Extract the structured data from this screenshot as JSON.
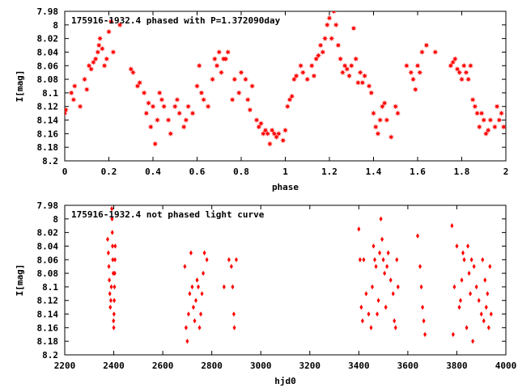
{
  "chart_data": [
    {
      "type": "scatter",
      "title": "175916-1932.4 phased with P=1.372090day",
      "xlabel": "phase",
      "ylabel": "I[mag]",
      "xlim": [
        0,
        2
      ],
      "ylim": [
        8.2,
        7.98
      ],
      "y_inverted": true,
      "grid": false,
      "marker": "star",
      "color": "#ff0000",
      "xticks": [
        "0",
        "0.2",
        "0.4",
        "0.6",
        "0.8",
        "1",
        "1.2",
        "1.4",
        "1.6",
        "1.8",
        "2"
      ],
      "xtick_values": [
        0,
        0.2,
        0.4,
        0.6,
        0.8,
        1.0,
        1.2,
        1.4,
        1.6,
        1.8,
        2.0
      ],
      "yticks": [
        "7.98",
        "8",
        "8.02",
        "8.04",
        "8.06",
        "8.08",
        "8.1",
        "8.12",
        "8.14",
        "8.16",
        "8.18",
        "8.2"
      ],
      "ytick_values": [
        7.98,
        8.0,
        8.02,
        8.04,
        8.06,
        8.08,
        8.1,
        8.12,
        8.14,
        8.16,
        8.18,
        8.2
      ],
      "points": [
        [
          0.0,
          8.13
        ],
        [
          0.005,
          8.125
        ],
        [
          0.03,
          8.1
        ],
        [
          0.04,
          8.11
        ],
        [
          0.045,
          8.09
        ],
        [
          0.07,
          8.12
        ],
        [
          0.09,
          8.08
        ],
        [
          0.1,
          8.095
        ],
        [
          0.11,
          8.06
        ],
        [
          0.12,
          8.065
        ],
        [
          0.13,
          8.055
        ],
        [
          0.14,
          8.05
        ],
        [
          0.15,
          8.04
        ],
        [
          0.155,
          8.03
        ],
        [
          0.16,
          8.02
        ],
        [
          0.17,
          8.035
        ],
        [
          0.18,
          8.06
        ],
        [
          0.19,
          8.05
        ],
        [
          0.2,
          8.01
        ],
        [
          0.21,
          7.995
        ],
        [
          0.22,
          8.04
        ],
        [
          0.25,
          8.0
        ],
        [
          0.3,
          8.065
        ],
        [
          0.31,
          8.07
        ],
        [
          0.33,
          8.09
        ],
        [
          0.34,
          8.085
        ],
        [
          0.36,
          8.1
        ],
        [
          0.37,
          8.13
        ],
        [
          0.38,
          8.115
        ],
        [
          0.39,
          8.15
        ],
        [
          0.4,
          8.12
        ],
        [
          0.41,
          8.175
        ],
        [
          0.42,
          8.14
        ],
        [
          0.43,
          8.1
        ],
        [
          0.44,
          8.11
        ],
        [
          0.45,
          8.12
        ],
        [
          0.47,
          8.14
        ],
        [
          0.48,
          8.16
        ],
        [
          0.5,
          8.12
        ],
        [
          0.51,
          8.11
        ],
        [
          0.52,
          8.13
        ],
        [
          0.54,
          8.15
        ],
        [
          0.55,
          8.14
        ],
        [
          0.56,
          8.12
        ],
        [
          0.58,
          8.13
        ],
        [
          0.6,
          8.09
        ],
        [
          0.61,
          8.06
        ],
        [
          0.62,
          8.1
        ],
        [
          0.63,
          8.11
        ],
        [
          0.65,
          8.12
        ],
        [
          0.67,
          8.08
        ],
        [
          0.68,
          8.05
        ],
        [
          0.69,
          8.06
        ],
        [
          0.7,
          8.04
        ],
        [
          0.71,
          8.07
        ],
        [
          0.72,
          8.05
        ],
        [
          0.73,
          8.05
        ],
        [
          0.74,
          8.04
        ],
        [
          0.76,
          8.11
        ],
        [
          0.77,
          8.08
        ],
        [
          0.79,
          8.1
        ],
        [
          0.8,
          8.07
        ],
        [
          0.82,
          8.08
        ],
        [
          0.83,
          8.11
        ],
        [
          0.84,
          8.125
        ],
        [
          0.85,
          8.09
        ],
        [
          0.87,
          8.14
        ],
        [
          0.88,
          8.15
        ],
        [
          0.89,
          8.145
        ],
        [
          0.9,
          8.16
        ],
        [
          0.91,
          8.155
        ],
        [
          0.92,
          8.16
        ],
        [
          0.93,
          8.175
        ],
        [
          0.94,
          8.155
        ],
        [
          0.95,
          8.16
        ],
        [
          0.96,
          8.165
        ],
        [
          0.97,
          8.16
        ],
        [
          0.99,
          8.17
        ],
        [
          1.0,
          8.155
        ],
        [
          1.01,
          8.12
        ],
        [
          1.02,
          8.11
        ],
        [
          1.03,
          8.105
        ],
        [
          1.04,
          8.08
        ],
        [
          1.05,
          8.075
        ],
        [
          1.07,
          8.06
        ],
        [
          1.08,
          8.07
        ],
        [
          1.1,
          8.08
        ],
        [
          1.12,
          8.06
        ],
        [
          1.13,
          8.075
        ],
        [
          1.14,
          8.05
        ],
        [
          1.15,
          8.045
        ],
        [
          1.16,
          8.03
        ],
        [
          1.17,
          8.04
        ],
        [
          1.18,
          8.02
        ],
        [
          1.19,
          8.0
        ],
        [
          1.2,
          7.99
        ],
        [
          1.21,
          8.02
        ],
        [
          1.22,
          7.98
        ],
        [
          1.23,
          8.0
        ],
        [
          1.24,
          8.03
        ],
        [
          1.25,
          8.05
        ],
        [
          1.26,
          8.07
        ],
        [
          1.27,
          8.06
        ],
        [
          1.28,
          8.065
        ],
        [
          1.29,
          8.075
        ],
        [
          1.3,
          8.06
        ],
        [
          1.31,
          8.005
        ],
        [
          1.32,
          8.05
        ],
        [
          1.33,
          8.085
        ],
        [
          1.34,
          8.07
        ],
        [
          1.35,
          8.085
        ],
        [
          1.36,
          8.075
        ],
        [
          1.38,
          8.09
        ],
        [
          1.39,
          8.1
        ],
        [
          1.4,
          8.13
        ],
        [
          1.41,
          8.15
        ],
        [
          1.42,
          8.16
        ],
        [
          1.43,
          8.14
        ],
        [
          1.44,
          8.12
        ],
        [
          1.45,
          8.115
        ],
        [
          1.46,
          8.14
        ],
        [
          1.48,
          8.165
        ],
        [
          1.5,
          8.12
        ],
        [
          1.51,
          8.13
        ],
        [
          1.55,
          8.06
        ],
        [
          1.57,
          8.07
        ],
        [
          1.58,
          8.08
        ],
        [
          1.59,
          8.095
        ],
        [
          1.6,
          8.06
        ],
        [
          1.61,
          8.07
        ],
        [
          1.62,
          8.04
        ],
        [
          1.64,
          8.03
        ],
        [
          1.68,
          8.04
        ],
        [
          1.75,
          8.06
        ],
        [
          1.76,
          8.055
        ],
        [
          1.77,
          8.05
        ],
        [
          1.78,
          8.065
        ],
        [
          1.79,
          8.07
        ],
        [
          1.8,
          8.08
        ],
        [
          1.81,
          8.06
        ],
        [
          1.82,
          8.07
        ],
        [
          1.83,
          8.08
        ],
        [
          1.84,
          8.06
        ],
        [
          1.85,
          8.11
        ],
        [
          1.86,
          8.12
        ],
        [
          1.87,
          8.13
        ],
        [
          1.88,
          8.15
        ],
        [
          1.89,
          8.13
        ],
        [
          1.9,
          8.14
        ],
        [
          1.91,
          8.16
        ],
        [
          1.92,
          8.155
        ],
        [
          1.93,
          8.14
        ],
        [
          1.95,
          8.15
        ],
        [
          1.96,
          8.12
        ],
        [
          1.97,
          8.14
        ],
        [
          1.98,
          8.13
        ],
        [
          1.99,
          8.15
        ]
      ]
    },
    {
      "type": "scatter",
      "title": "175916-1932.4 not phased light curve",
      "xlabel": "hjd0",
      "ylabel": "I[mag]",
      "xlim": [
        2200,
        4000
      ],
      "ylim": [
        8.2,
        7.98
      ],
      "y_inverted": true,
      "grid": false,
      "marker": "diamond",
      "color": "#ff0000",
      "xticks": [
        "2200",
        "2400",
        "2600",
        "2800",
        "3000",
        "3200",
        "3400",
        "3600",
        "3800",
        "4000"
      ],
      "xtick_values": [
        2200,
        2400,
        2600,
        2800,
        3000,
        3200,
        3400,
        3600,
        3800,
        4000
      ],
      "yticks": [
        "7.98",
        "8",
        "8.02",
        "8.04",
        "8.06",
        "8.08",
        "8.1",
        "8.12",
        "8.14",
        "8.16",
        "8.18",
        "8.2"
      ],
      "ytick_values": [
        7.98,
        8.0,
        8.02,
        8.04,
        8.06,
        8.08,
        8.1,
        8.12,
        8.14,
        8.16,
        8.18,
        8.2
      ],
      "points": [
        [
          2375,
          8.03
        ],
        [
          2378,
          8.05
        ],
        [
          2380,
          8.07
        ],
        [
          2382,
          8.09
        ],
        [
          2384,
          8.11
        ],
        [
          2386,
          8.13
        ],
        [
          2388,
          8.12
        ],
        [
          2390,
          8.1
        ],
        [
          2392,
          7.985
        ],
        [
          2393,
          8.0
        ],
        [
          2394,
          8.02
        ],
        [
          2395,
          8.04
        ],
        [
          2396,
          8.06
        ],
        [
          2398,
          8.08
        ],
        [
          2399,
          8.15
        ],
        [
          2400,
          8.16
        ],
        [
          2401,
          8.14
        ],
        [
          2402,
          8.12
        ],
        [
          2403,
          8.1
        ],
        [
          2404,
          8.08
        ],
        [
          2405,
          8.06
        ],
        [
          2406,
          8.04
        ],
        [
          2690,
          8.07
        ],
        [
          2695,
          8.16
        ],
        [
          2700,
          8.18
        ],
        [
          2705,
          8.14
        ],
        [
          2710,
          8.11
        ],
        [
          2715,
          8.05
        ],
        [
          2720,
          8.1
        ],
        [
          2725,
          8.13
        ],
        [
          2730,
          8.15
        ],
        [
          2735,
          8.12
        ],
        [
          2740,
          8.09
        ],
        [
          2745,
          8.1
        ],
        [
          2750,
          8.16
        ],
        [
          2755,
          8.14
        ],
        [
          2760,
          8.11
        ],
        [
          2765,
          8.08
        ],
        [
          2770,
          8.05
        ],
        [
          2780,
          8.06
        ],
        [
          2850,
          8.1
        ],
        [
          2870,
          8.06
        ],
        [
          2880,
          8.07
        ],
        [
          2885,
          8.1
        ],
        [
          2890,
          8.14
        ],
        [
          2892,
          8.16
        ],
        [
          2900,
          8.06
        ],
        [
          3400,
          8.015
        ],
        [
          3405,
          8.06
        ],
        [
          3410,
          8.13
        ],
        [
          3415,
          8.15
        ],
        [
          3420,
          8.06
        ],
        [
          3430,
          8.11
        ],
        [
          3440,
          8.14
        ],
        [
          3450,
          8.16
        ],
        [
          3455,
          8.1
        ],
        [
          3460,
          8.04
        ],
        [
          3465,
          8.06
        ],
        [
          3470,
          8.07
        ],
        [
          3475,
          8.14
        ],
        [
          3480,
          8.12
        ],
        [
          3485,
          8.05
        ],
        [
          3490,
          8.0
        ],
        [
          3495,
          8.03
        ],
        [
          3500,
          8.06
        ],
        [
          3505,
          8.08
        ],
        [
          3510,
          8.13
        ],
        [
          3515,
          8.07
        ],
        [
          3520,
          8.05
        ],
        [
          3530,
          8.09
        ],
        [
          3540,
          8.11
        ],
        [
          3545,
          8.15
        ],
        [
          3550,
          8.16
        ],
        [
          3555,
          8.06
        ],
        [
          3560,
          8.1
        ],
        [
          3640,
          8.025
        ],
        [
          3650,
          8.07
        ],
        [
          3655,
          8.1
        ],
        [
          3660,
          8.13
        ],
        [
          3665,
          8.15
        ],
        [
          3670,
          8.17
        ],
        [
          3780,
          8.01
        ],
        [
          3785,
          8.17
        ],
        [
          3790,
          8.1
        ],
        [
          3800,
          8.04
        ],
        [
          3810,
          8.13
        ],
        [
          3815,
          8.12
        ],
        [
          3820,
          8.09
        ],
        [
          3825,
          8.05
        ],
        [
          3830,
          8.06
        ],
        [
          3840,
          8.16
        ],
        [
          3845,
          8.04
        ],
        [
          3850,
          8.08
        ],
        [
          3855,
          8.11
        ],
        [
          3860,
          8.06
        ],
        [
          3865,
          8.18
        ],
        [
          3870,
          8.07
        ],
        [
          3880,
          8.1
        ],
        [
          3890,
          8.12
        ],
        [
          3900,
          8.14
        ],
        [
          3905,
          8.06
        ],
        [
          3910,
          8.15
        ],
        [
          3915,
          8.09
        ],
        [
          3920,
          8.13
        ],
        [
          3925,
          8.11
        ],
        [
          3930,
          8.16
        ],
        [
          3935,
          8.07
        ],
        [
          3940,
          8.14
        ]
      ]
    }
  ]
}
